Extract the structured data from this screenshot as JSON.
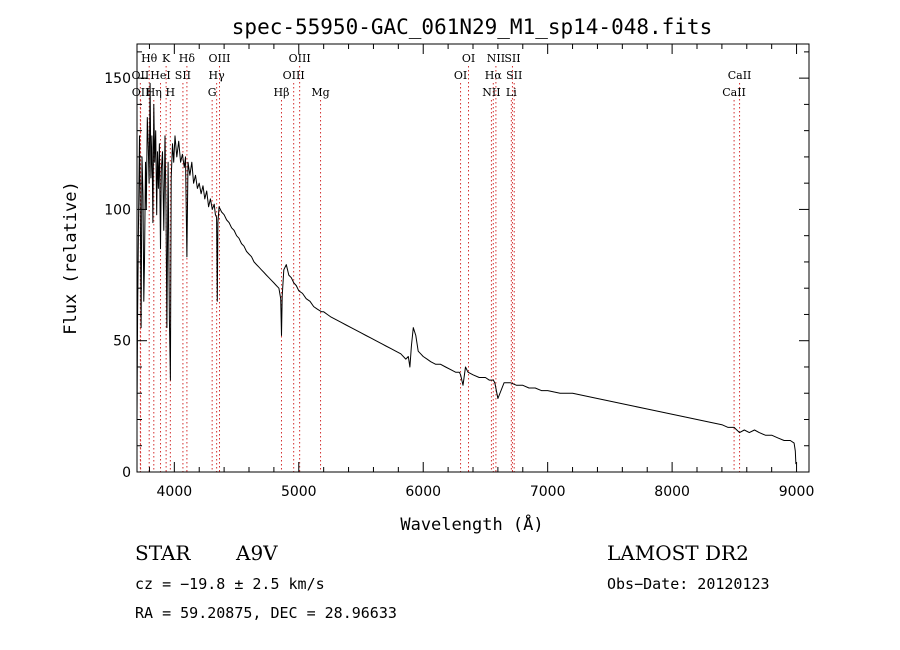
{
  "chart_data": {
    "type": "line",
    "title": "spec-55950-GAC_061N29_M1_sp14-048.fits",
    "xlabel": "Wavelength (Å)",
    "ylabel": "Flux (relative)",
    "xlim": [
      3700,
      9100
    ],
    "ylim": [
      0,
      163
    ],
    "x_ticks": [
      4000,
      5000,
      6000,
      7000,
      8000,
      9000
    ],
    "y_ticks": [
      0,
      50,
      100,
      150
    ],
    "grid": false,
    "series": [
      {
        "x": [
          3700,
          3705,
          3712,
          3720,
          3728,
          3733,
          3740,
          3748,
          3755,
          3760,
          3768,
          3775,
          3783,
          3790,
          3797,
          3805,
          3812,
          3820,
          3828,
          3835,
          3842,
          3850,
          3858,
          3865,
          3872,
          3880,
          3889,
          3895,
          3905,
          3915,
          3925,
          3933,
          3940,
          3950,
          3960,
          3968,
          3975,
          3985,
          3995,
          4005,
          4020,
          4035,
          4050,
          4065,
          4080,
          4090,
          4101,
          4110,
          4125,
          4140,
          4155,
          4170,
          4185,
          4200,
          4215,
          4230,
          4245,
          4260,
          4275,
          4290,
          4305,
          4320,
          4330,
          4340,
          4345,
          4350,
          4360,
          4380,
          4400,
          4420,
          4440,
          4460,
          4480,
          4500,
          4520,
          4540,
          4560,
          4580,
          4600,
          4620,
          4640,
          4660,
          4680,
          4700,
          4720,
          4740,
          4760,
          4780,
          4800,
          4820,
          4840,
          4855,
          4861,
          4867,
          4880,
          4900,
          4920,
          4940,
          4960,
          4980,
          5000,
          5030,
          5060,
          5090,
          5120,
          5150,
          5183,
          5200,
          5230,
          5260,
          5300,
          5340,
          5380,
          5420,
          5460,
          5500,
          5540,
          5580,
          5620,
          5660,
          5700,
          5740,
          5780,
          5820,
          5860,
          5880,
          5893,
          5905,
          5920,
          5940,
          5960,
          5980,
          6000,
          6030,
          6060,
          6100,
          6140,
          6180,
          6220,
          6260,
          6290,
          6300,
          6320,
          6340,
          6360,
          6400,
          6450,
          6500,
          6530,
          6550,
          6563,
          6575,
          6600,
          6650,
          6700,
          6750,
          6800,
          6850,
          6900,
          6950,
          7000,
          7100,
          7200,
          7300,
          7400,
          7500,
          7600,
          7700,
          7800,
          7900,
          8000,
          8100,
          8200,
          8300,
          8400,
          8450,
          8498,
          8520,
          8542,
          8580,
          8620,
          8662,
          8700,
          8750,
          8800,
          8850,
          8900,
          8950,
          8980,
          8990,
          8995
        ],
        "values": [
          20,
          60,
          95,
          128,
          90,
          55,
          120,
          105,
          65,
          80,
          118,
          100,
          135,
          125,
          110,
          148,
          112,
          128,
          95,
          140,
          118,
          130,
          98,
          122,
          108,
          125,
          85,
          115,
          122,
          92,
          128,
          100,
          55,
          118,
          58,
          35,
          112,
          125,
          118,
          128,
          120,
          126,
          118,
          121,
          116,
          120,
          82,
          118,
          113,
          118,
          110,
          113,
          108,
          110,
          106,
          109,
          104,
          107,
          101,
          104,
          100,
          102,
          98,
          97,
          65,
          95,
          101,
          99,
          98,
          96,
          95,
          93,
          92,
          90,
          89,
          87,
          86,
          84,
          83,
          82,
          80,
          79,
          78,
          77,
          76,
          75,
          74,
          73,
          72,
          71,
          70,
          66,
          52,
          67,
          77,
          79,
          75,
          74,
          72,
          71,
          69,
          68,
          66,
          65,
          63,
          62,
          61,
          61,
          60,
          59,
          58,
          57,
          56,
          55,
          54,
          53,
          52,
          51,
          50,
          49,
          48,
          47,
          46,
          45,
          43,
          44,
          40,
          48,
          55,
          52,
          46,
          45,
          44,
          43,
          42,
          41,
          41,
          40,
          39,
          38,
          38,
          37,
          33,
          40,
          38,
          37,
          36,
          36,
          35,
          35,
          35,
          34,
          28,
          34,
          34,
          33,
          33,
          32,
          32,
          31,
          31,
          30,
          30,
          29,
          28,
          27,
          26,
          25,
          24,
          23,
          22,
          21,
          20,
          19,
          18,
          17,
          17,
          16,
          15,
          16,
          15,
          16,
          15,
          14,
          14,
          13,
          12,
          12,
          11,
          8,
          3
        ]
      }
    ],
    "lines": [
      {
        "label": "OII",
        "x": 3727,
        "row": 1
      },
      {
        "label": "OII",
        "x": 3729,
        "row": 2
      },
      {
        "label": "Hθ",
        "x": 3798,
        "row": 0
      },
      {
        "label": "Hη",
        "x": 3835,
        "row": 2
      },
      {
        "label": "HeI",
        "x": 3889,
        "row": 1
      },
      {
        "label": "K",
        "x": 3934,
        "row": 0
      },
      {
        "label": "H",
        "x": 3968,
        "row": 2
      },
      {
        "label": "SII",
        "x": 4069,
        "row": 1
      },
      {
        "label": "Hδ",
        "x": 4101,
        "row": 0
      },
      {
        "label": "OIII",
        "x": 4363,
        "row": 0
      },
      {
        "label": "Hγ",
        "x": 4340,
        "row": 1
      },
      {
        "label": "G",
        "x": 4304,
        "row": 2
      },
      {
        "label": "Hβ",
        "x": 4861,
        "row": 2
      },
      {
        "label": "OIII",
        "x": 5007,
        "row": 0
      },
      {
        "label": "OIII",
        "x": 4959,
        "row": 1
      },
      {
        "label": "Mg",
        "x": 5175,
        "row": 2
      },
      {
        "label": "OI",
        "x": 6364,
        "row": 0
      },
      {
        "label": "OI",
        "x": 6300,
        "row": 1
      },
      {
        "label": "NII",
        "x": 6584,
        "row": 0
      },
      {
        "label": "SII",
        "x": 6717,
        "row": 0
      },
      {
        "label": "Hα",
        "x": 6563,
        "row": 1
      },
      {
        "label": "SII",
        "x": 6731,
        "row": 1
      },
      {
        "label": "NII",
        "x": 6548,
        "row": 2
      },
      {
        "label": "Li",
        "x": 6708,
        "row": 2
      },
      {
        "label": "CaII",
        "x": 8542,
        "row": 1
      },
      {
        "label": "CaII",
        "x": 8498,
        "row": 2
      }
    ]
  },
  "info": {
    "object_class": "STAR",
    "subclass": "A9V",
    "survey": "LAMOST DR2",
    "cz": "cz = −19.8 ± 2.5 km/s",
    "obs_date": "Obs−Date: 20120123",
    "coords": "RA =  59.20875, DEC =  28.96633"
  },
  "colors": {
    "spectrum": "#000000",
    "line_markers": "#d33030",
    "axes": "#000000",
    "background": "#ffffff"
  }
}
